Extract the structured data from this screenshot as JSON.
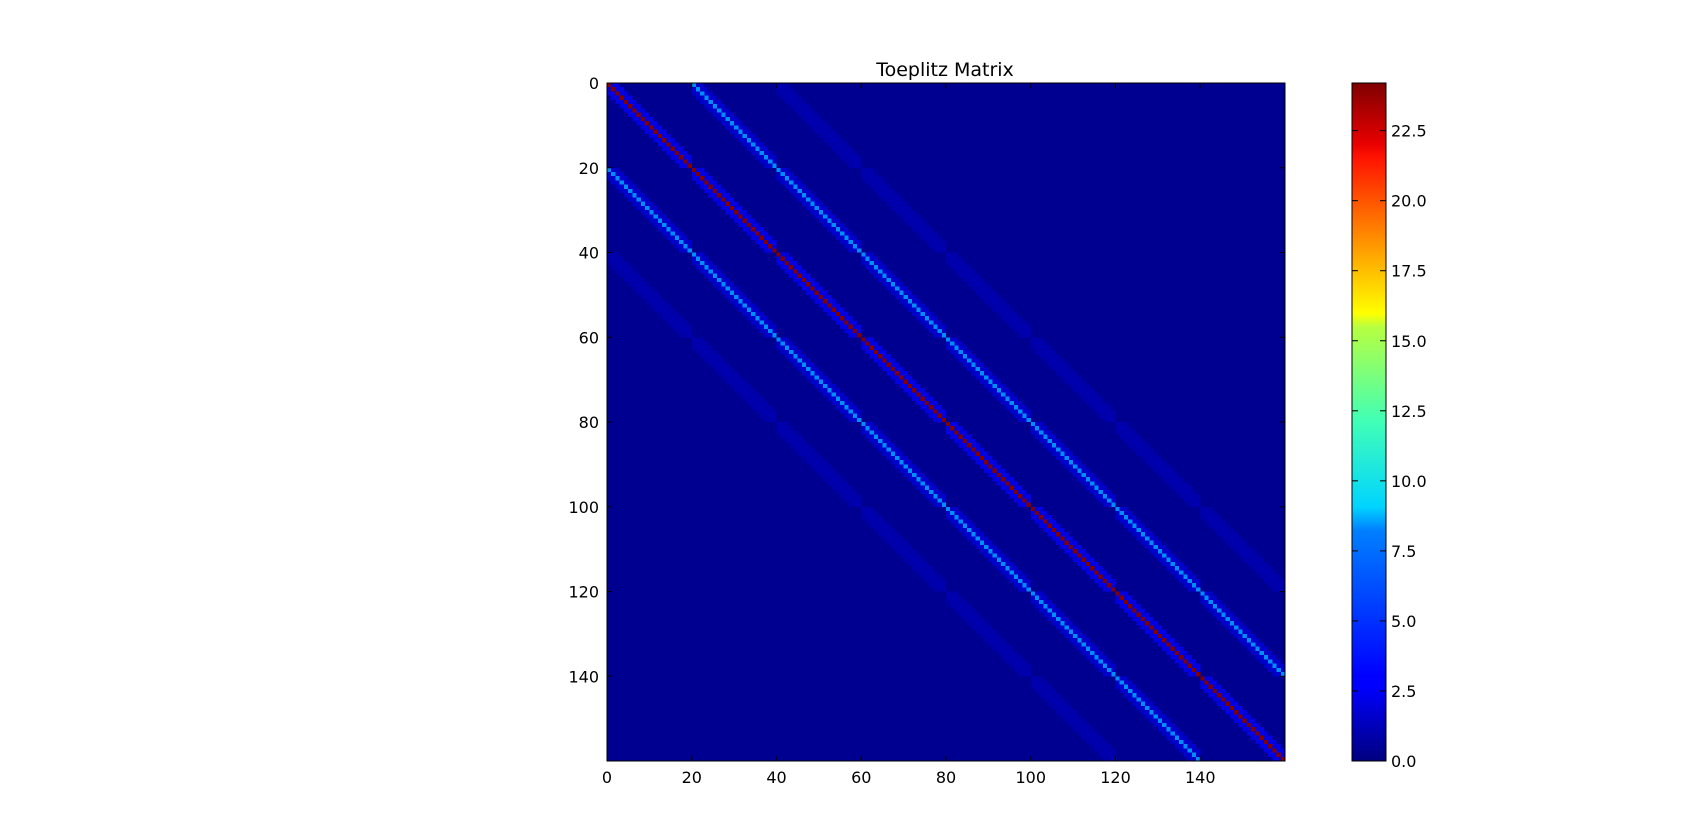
{
  "chart_data": {
    "type": "heatmap",
    "title": "Toeplitz Matrix",
    "rows": 160,
    "cols": 160,
    "block_size": 20,
    "grid": false,
    "colormap": "jet",
    "x_range": [
      0,
      160
    ],
    "y_range": [
      0,
      160
    ],
    "y_axis_inverted": true,
    "x_ticks": [
      "0",
      "20",
      "40",
      "60",
      "80",
      "100",
      "120",
      "140"
    ],
    "y_ticks": [
      "0",
      "20",
      "40",
      "60",
      "80",
      "100",
      "120",
      "140"
    ],
    "colorbar": {
      "range": [
        0,
        24.2
      ],
      "ticks": [
        "0.0",
        "2.5",
        "5.0",
        "7.5",
        "10.0",
        "12.5",
        "15.0",
        "17.5",
        "20.0",
        "22.5"
      ]
    },
    "block_diagonals": [
      {
        "block_offset": 0,
        "in_block_diagonal": 24.2,
        "in_block_near_diagonal": 2.3
      },
      {
        "block_offset": 1,
        "in_block_diagonal": 6.4,
        "in_block_near_diagonal": 1.8
      },
      {
        "block_offset": 2,
        "in_block_diagonal": 1.2,
        "in_block_near_diagonal": 1.0
      }
    ],
    "background_value": 0.4
  }
}
